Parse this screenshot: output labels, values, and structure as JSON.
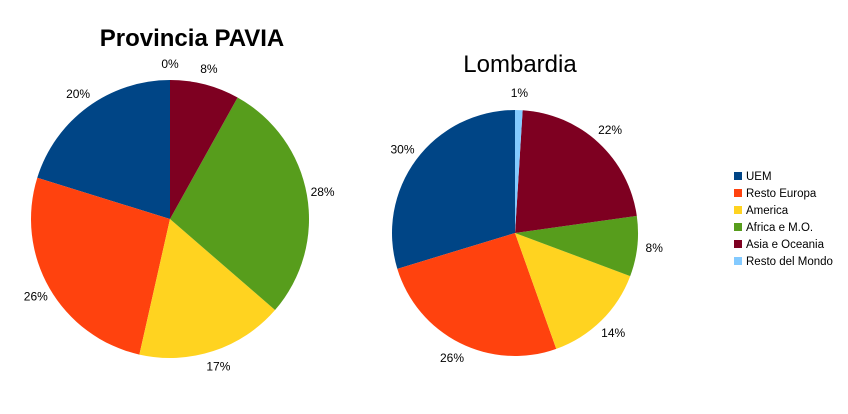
{
  "chart_data": [
    {
      "type": "pie",
      "title": "Provincia PAVIA",
      "categories": [
        "UEM",
        "Resto Europa",
        "America",
        "Africa e M.O.",
        "Asia e Oceania",
        "Resto del Mondo"
      ],
      "values": [
        20,
        26,
        17,
        28,
        8,
        0
      ],
      "labels": [
        "20%",
        "26%",
        "17%",
        "28%",
        "8%",
        "0%"
      ],
      "direction": "counterclockwise",
      "legend": "right"
    },
    {
      "type": "pie",
      "title": "Lombardia",
      "categories": [
        "UEM",
        "Resto Europa",
        "America",
        "Africa e M.O.",
        "Asia e Oceania",
        "Resto del Mondo"
      ],
      "values": [
        30,
        26,
        14,
        8,
        22,
        1
      ],
      "labels": [
        "30%",
        "26%",
        "14%",
        "8%",
        "22%",
        "1%"
      ],
      "direction": "counterclockwise",
      "legend": "right"
    }
  ],
  "legend": {
    "items": [
      {
        "label": "UEM",
        "color": "#004586"
      },
      {
        "label": "Resto Europa",
        "color": "#ff420e"
      },
      {
        "label": "America",
        "color": "#ffd320"
      },
      {
        "label": "Africa e M.O.",
        "color": "#579d1c"
      },
      {
        "label": "Asia e Oceania",
        "color": "#7e0021"
      },
      {
        "label": "Resto del Mondo",
        "color": "#83caff"
      }
    ]
  }
}
